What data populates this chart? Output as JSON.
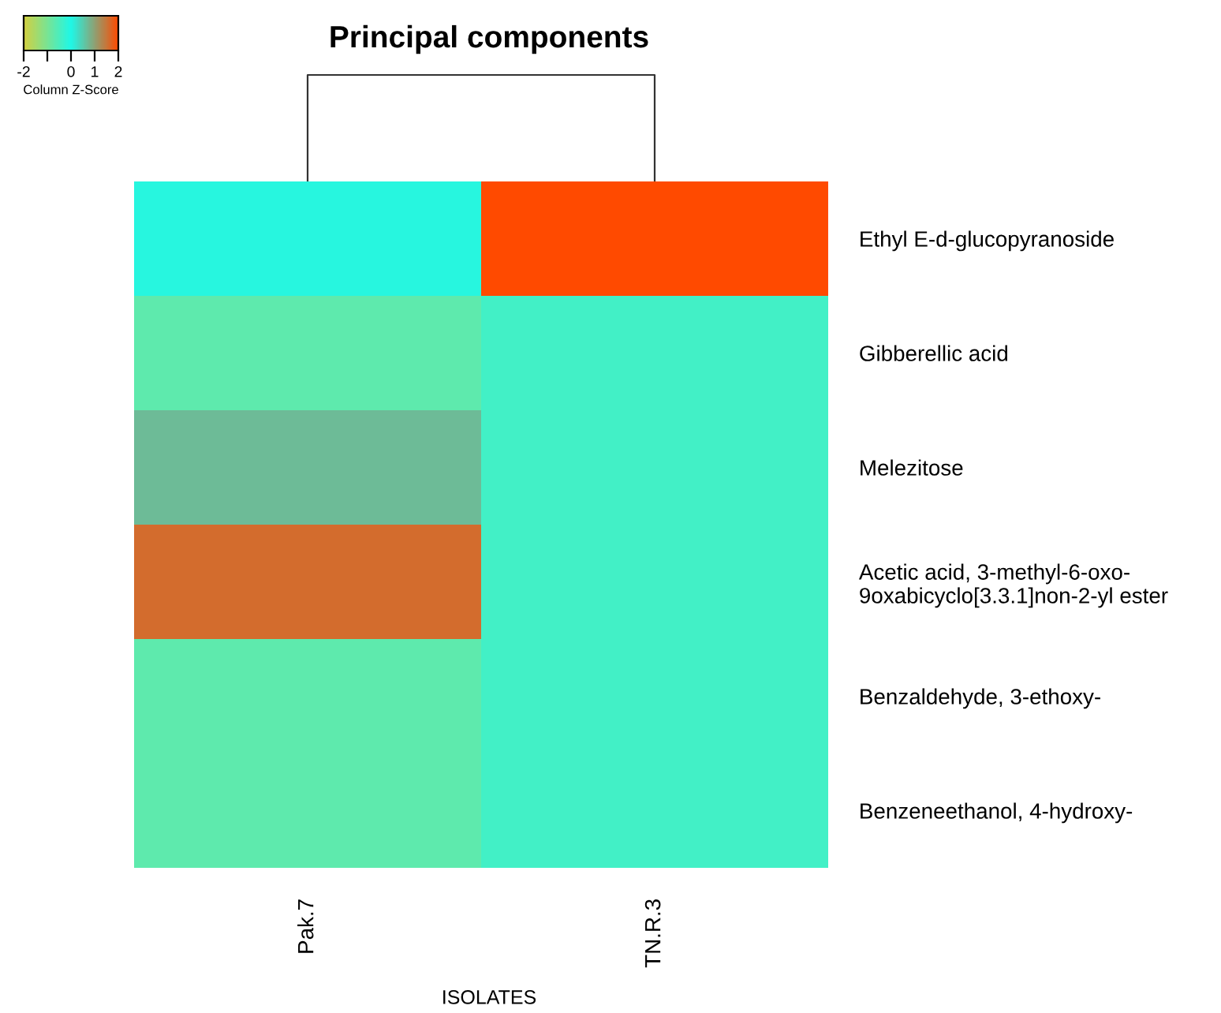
{
  "chart_data": {
    "type": "heatmap",
    "title": "Principal components",
    "xlabel": "ISOLATES",
    "clabel": "Column Z-Score",
    "categories": [
      "Pak.7",
      "TN.R.3"
    ],
    "y_categories": [
      "Ethyl E-d-glucopyranoside",
      "Gibberellic acid",
      "Melezitose",
      "Acetic acid, 3-methyl-6-oxo-\n9oxabicyclo[3.3.1]non-2-yl ester",
      "Benzaldehyde, 3-ethoxy-",
      "Benzeneethanol, 4-hydroxy-"
    ],
    "cells": [
      [
        -0.1,
        2.0
      ],
      [
        -0.7,
        -0.4
      ],
      [
        0.7,
        -0.4
      ],
      [
        1.6,
        -0.4
      ],
      [
        -0.7,
        -0.4
      ],
      [
        -0.7,
        -0.4
      ]
    ],
    "clim": [
      -2,
      2
    ],
    "cticks": [
      -2,
      {
        "value": -1,
        "label": null
      },
      0,
      1,
      2
    ]
  }
}
